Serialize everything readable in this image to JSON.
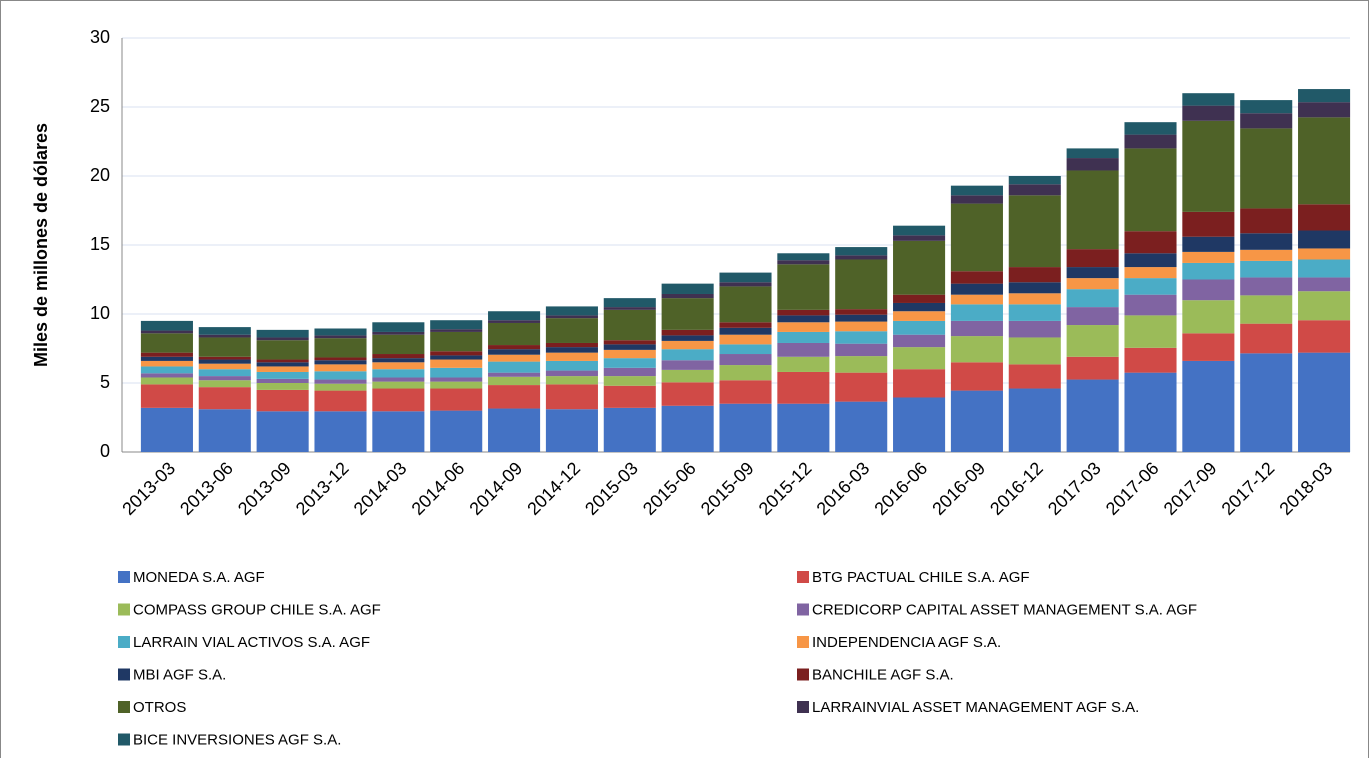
{
  "chart_data": {
    "type": "stacked_bar",
    "y_label": "Miles de millones de dólares",
    "categories": [
      "2013-03",
      "2013-06",
      "2013-09",
      "2013-12",
      "2014-03",
      "2014-06",
      "2014-09",
      "2014-12",
      "2015-03",
      "2015-06",
      "2015-09",
      "2015-12",
      "2016-03",
      "2016-06",
      "2016-09",
      "2016-12",
      "2017-03",
      "2017-06",
      "2017-09",
      "2017-12",
      "2018-03"
    ],
    "series": [
      {
        "name": "MONEDA S.A. AGF",
        "color": "#4472c4",
        "values": [
          3.2,
          3.1,
          2.95,
          2.95,
          2.95,
          3.0,
          3.15,
          3.1,
          3.2,
          3.35,
          3.5,
          3.5,
          3.65,
          3.95,
          4.45,
          4.6,
          5.25,
          5.75,
          6.6,
          7.15,
          7.2
        ]
      },
      {
        "name": "BTG PACTUAL CHILE S.A. AGF",
        "color": "#d04a47",
        "values": [
          1.7,
          1.6,
          1.55,
          1.5,
          1.65,
          1.6,
          1.7,
          1.8,
          1.6,
          1.7,
          1.7,
          2.3,
          2.1,
          2.05,
          2.05,
          1.75,
          1.65,
          1.8,
          2.0,
          2.15,
          2.35
        ]
      },
      {
        "name": "COMPASS GROUP CHILE S.A. AGF",
        "color": "#9bbb59",
        "values": [
          0.5,
          0.5,
          0.5,
          0.5,
          0.5,
          0.5,
          0.6,
          0.6,
          0.7,
          0.9,
          1.1,
          1.1,
          1.2,
          1.6,
          1.9,
          1.95,
          2.3,
          2.35,
          2.4,
          2.05,
          2.1
        ]
      },
      {
        "name": "CREDICORP CAPITAL ASSET MANAGEMENT S.A. AGF",
        "color": "#8064a2",
        "values": [
          0.3,
          0.3,
          0.3,
          0.3,
          0.3,
          0.3,
          0.3,
          0.4,
          0.6,
          0.7,
          0.8,
          1.0,
          0.9,
          0.9,
          1.1,
          1.2,
          1.3,
          1.5,
          1.5,
          1.3,
          1.0
        ]
      },
      {
        "name": "LARRAIN VIAL ACTIVOS S.A. AGF",
        "color": "#4bacc6",
        "values": [
          0.5,
          0.5,
          0.5,
          0.6,
          0.6,
          0.7,
          0.8,
          0.7,
          0.7,
          0.8,
          0.7,
          0.8,
          0.9,
          1.0,
          1.2,
          1.2,
          1.3,
          1.2,
          1.2,
          1.2,
          1.3
        ]
      },
      {
        "name": "INDEPENDENCIA AGF S.A.",
        "color": "#f79646",
        "values": [
          0.4,
          0.4,
          0.4,
          0.5,
          0.5,
          0.6,
          0.5,
          0.6,
          0.6,
          0.6,
          0.7,
          0.7,
          0.7,
          0.7,
          0.7,
          0.8,
          0.8,
          0.8,
          0.8,
          0.8,
          0.8
        ]
      },
      {
        "name": "MBI AGF S.A.",
        "color": "#1f3864",
        "values": [
          0.3,
          0.3,
          0.3,
          0.3,
          0.3,
          0.3,
          0.4,
          0.4,
          0.4,
          0.4,
          0.5,
          0.5,
          0.5,
          0.6,
          0.8,
          0.8,
          0.8,
          1.0,
          1.1,
          1.2,
          1.3
        ]
      },
      {
        "name": "BANCHILE AGF S.A.",
        "color": "#7b1f1f",
        "values": [
          0.3,
          0.2,
          0.2,
          0.2,
          0.3,
          0.3,
          0.3,
          0.3,
          0.3,
          0.4,
          0.4,
          0.4,
          0.4,
          0.6,
          0.9,
          1.1,
          1.3,
          1.6,
          1.8,
          1.8,
          1.9
        ]
      },
      {
        "name": "OTROS",
        "color": "#4f6228",
        "values": [
          1.4,
          1.4,
          1.4,
          1.4,
          1.4,
          1.4,
          1.6,
          1.8,
          2.2,
          2.3,
          2.6,
          3.3,
          3.6,
          3.9,
          4.9,
          5.2,
          5.7,
          6.0,
          6.6,
          5.8,
          6.3
        ]
      },
      {
        "name": "LARRAINVIAL ASSET MANAGEMENT AGF S.A.",
        "color": "#3f3151",
        "values": [
          0.2,
          0.2,
          0.2,
          0.2,
          0.2,
          0.2,
          0.2,
          0.2,
          0.2,
          0.3,
          0.3,
          0.3,
          0.3,
          0.4,
          0.6,
          0.8,
          0.9,
          1.0,
          1.1,
          1.1,
          1.1
        ]
      },
      {
        "name": "BICE INVERSIONES AGF S.A.",
        "color": "#215968",
        "values": [
          0.7,
          0.55,
          0.55,
          0.5,
          0.7,
          0.65,
          0.65,
          0.65,
          0.65,
          0.75,
          0.7,
          0.5,
          0.6,
          0.7,
          0.7,
          0.6,
          0.7,
          0.9,
          0.9,
          0.95,
          0.95
        ]
      }
    ],
    "ylim": [
      0,
      30
    ],
    "yticks": [
      0,
      5,
      10,
      15,
      20,
      25,
      30
    ],
    "grid": true
  }
}
